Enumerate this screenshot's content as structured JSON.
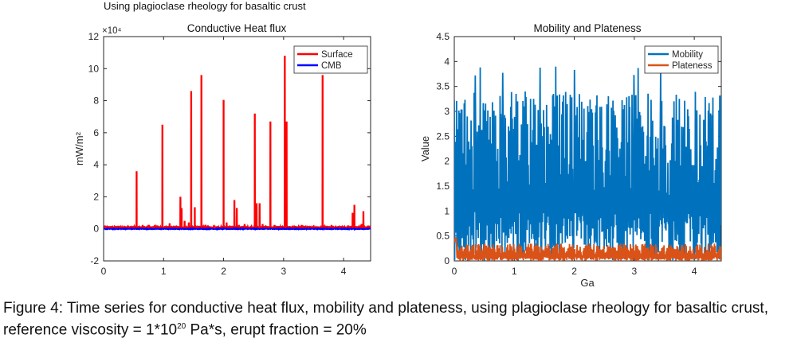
{
  "suptitle": "Using plagioclase rheology for basaltic crust",
  "caption": {
    "part1": "Figure 4: Time series for conductive heat flux, mobility and plateness, using plagioclase rheology for basaltic crust, reference viscosity = 1*10",
    "sup": "20",
    "part2": " Pa*s, erupt fraction = 20%"
  },
  "chart_data": [
    {
      "type": "line",
      "title": "Conductive Heat flux",
      "xlabel": "",
      "ylabel": "mW/m²",
      "exponent_label": "×10⁴",
      "xlim": [
        0,
        4.45
      ],
      "ylim": [
        -2,
        12
      ],
      "x_ticks": [
        0,
        1,
        2,
        3,
        4
      ],
      "y_ticks": [
        -2,
        0,
        2,
        4,
        6,
        8,
        10,
        12
      ],
      "legend_position": "top-right",
      "series": [
        {
          "name": "Surface",
          "color": "#ff0000",
          "baseline": 0.1,
          "spikes": [
            [
              0.03,
              0.2
            ],
            [
              0.1,
              0.15
            ],
            [
              0.55,
              3.6
            ],
            [
              0.65,
              0.2
            ],
            [
              0.75,
              0.25
            ],
            [
              0.98,
              6.5
            ],
            [
              1.1,
              0.3
            ],
            [
              1.28,
              2.0
            ],
            [
              1.3,
              1.3
            ],
            [
              1.35,
              0.5
            ],
            [
              1.42,
              0.4
            ],
            [
              1.46,
              8.6
            ],
            [
              1.52,
              1.3
            ],
            [
              1.63,
              9.6
            ],
            [
              1.7,
              0.25
            ],
            [
              1.85,
              0.2
            ],
            [
              2.0,
              8.0
            ],
            [
              2.05,
              0.4
            ],
            [
              2.1,
              0.2
            ],
            [
              2.18,
              1.8
            ],
            [
              2.22,
              1.3
            ],
            [
              2.35,
              0.3
            ],
            [
              2.52,
              7.2
            ],
            [
              2.55,
              1.6
            ],
            [
              2.6,
              1.6
            ],
            [
              2.65,
              0.3
            ],
            [
              2.78,
              6.7
            ],
            [
              2.85,
              0.2
            ],
            [
              3.02,
              10.8
            ],
            [
              3.05,
              6.7
            ],
            [
              3.15,
              0.2
            ],
            [
              3.3,
              0.2
            ],
            [
              3.65,
              9.6
            ],
            [
              3.8,
              0.2
            ],
            [
              4.15,
              1.0
            ],
            [
              4.18,
              1.5
            ],
            [
              4.3,
              0.3
            ],
            [
              4.33,
              1.1
            ],
            [
              4.4,
              0.2
            ]
          ]
        },
        {
          "name": "CMB",
          "color": "#0000ff",
          "baseline": 0.0,
          "spikes": []
        }
      ]
    },
    {
      "type": "line",
      "title": "Mobility and Plateness",
      "xlabel": "Ga",
      "ylabel": "Value",
      "xlim": [
        0,
        4.45
      ],
      "ylim": [
        0,
        4.5
      ],
      "x_ticks": [
        0,
        1,
        2,
        3,
        4
      ],
      "y_ticks": [
        0,
        0.5,
        1,
        1.5,
        2,
        2.5,
        3,
        3.5,
        4,
        4.5
      ],
      "legend_position": "top-right",
      "series": [
        {
          "name": "Mobility",
          "color": "#0072bd",
          "noise_min": 0.0,
          "noise_max": 3.5,
          "peak_max": 3.9
        },
        {
          "name": "Plateness",
          "color": "#d95319",
          "noise_min": 0.0,
          "noise_max": 0.35,
          "peak_max": 0.5
        }
      ]
    }
  ]
}
